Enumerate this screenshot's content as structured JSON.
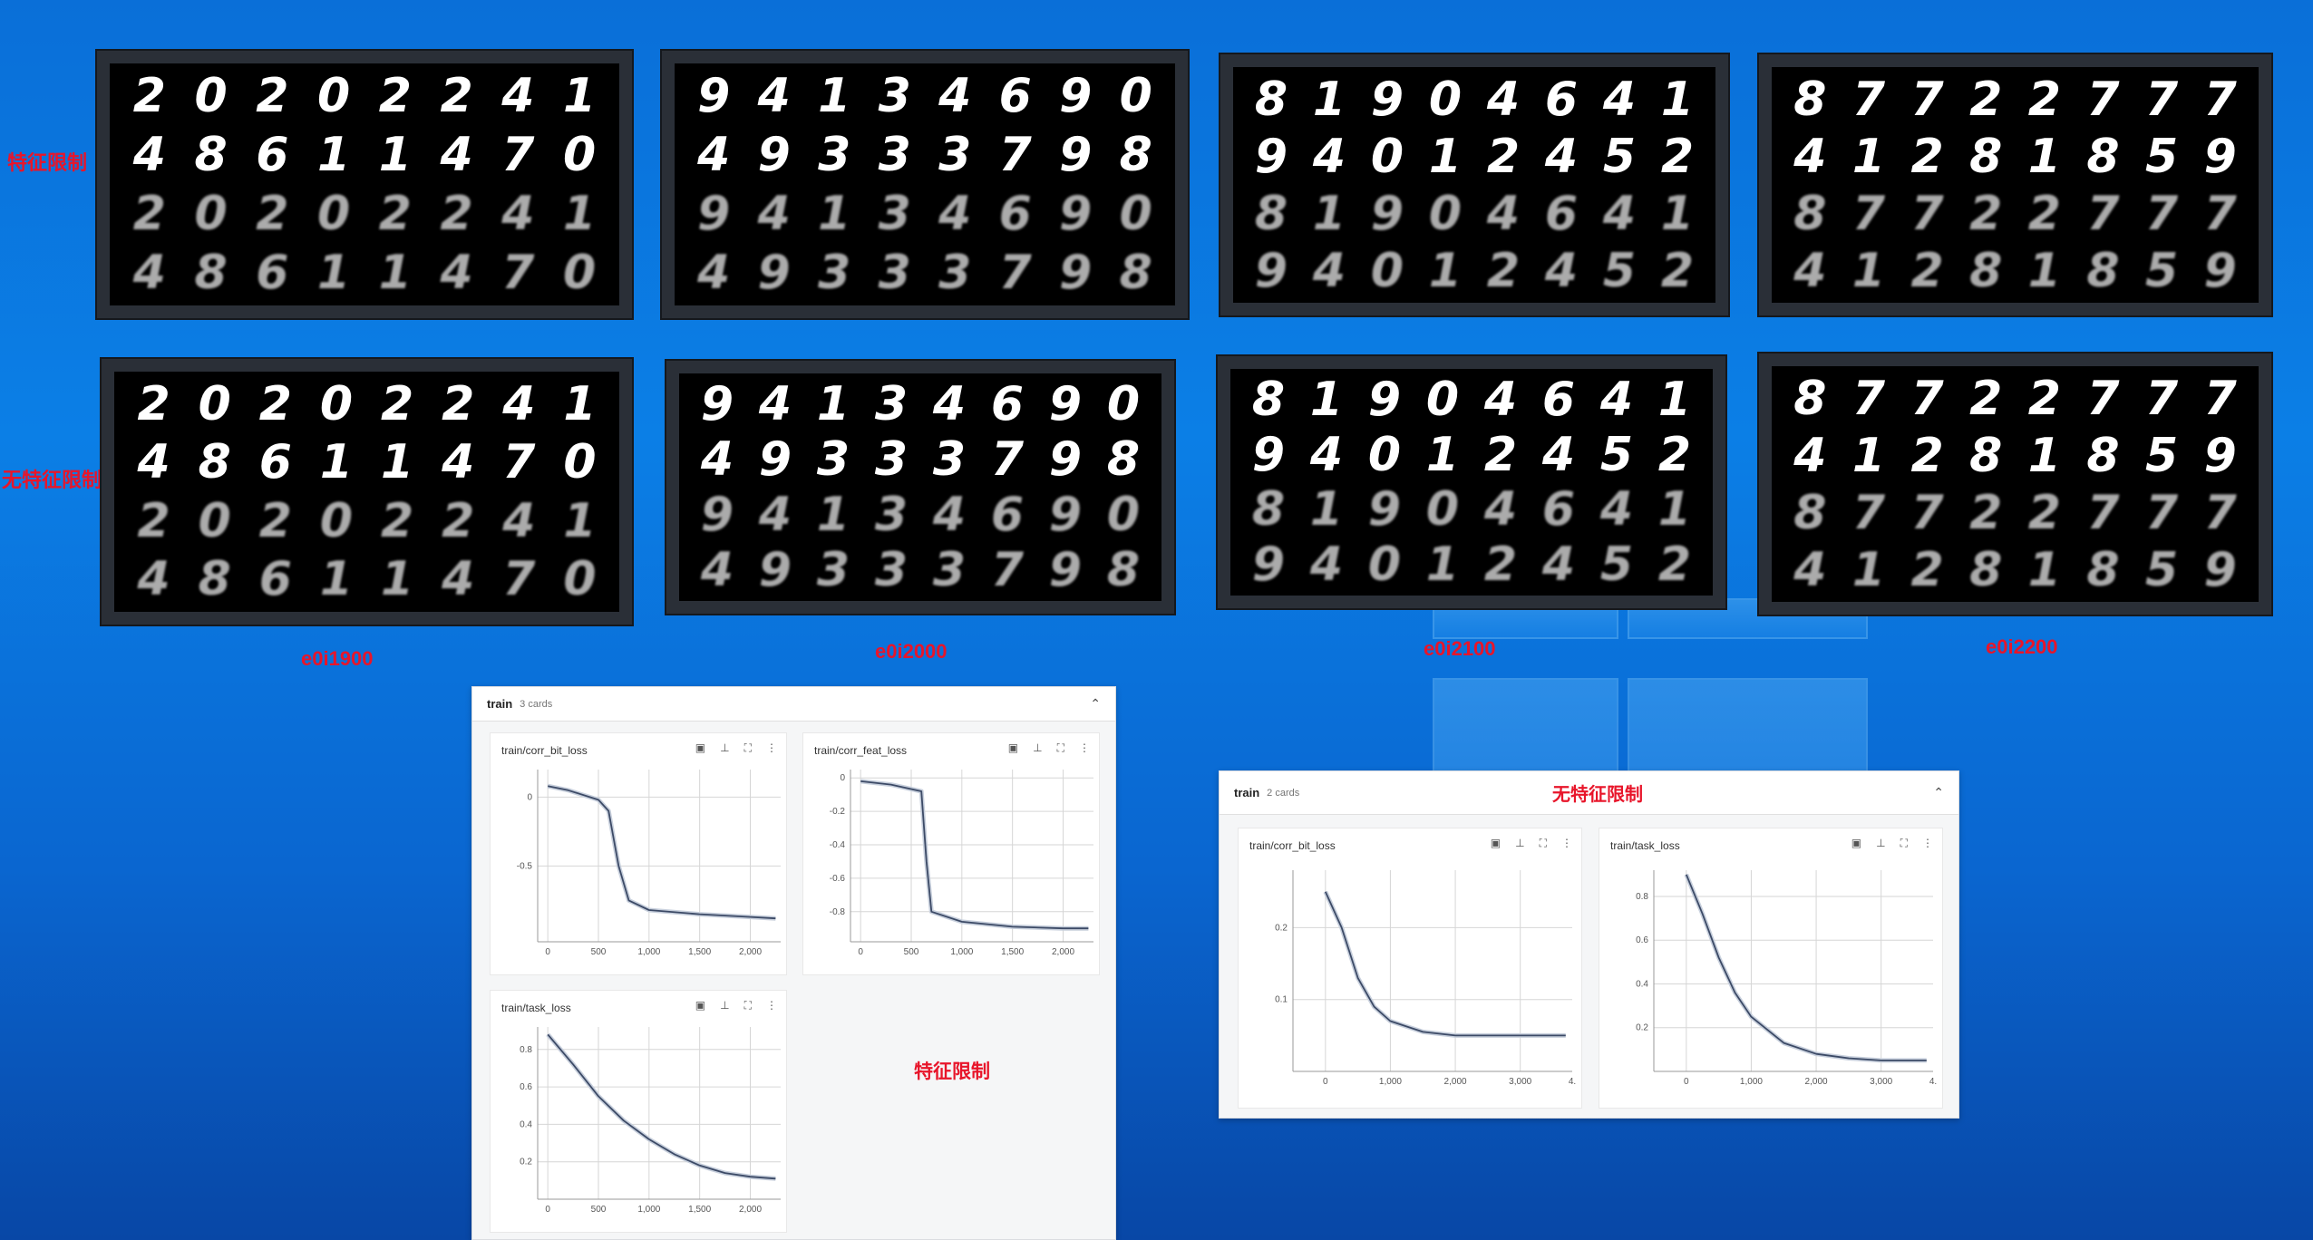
{
  "row_labels": {
    "top": "特征限制",
    "bottom": "无特征限制"
  },
  "columns": [
    {
      "label": "e0i1900",
      "digits": [
        [
          "2",
          "0",
          "2",
          "0",
          "2",
          "2",
          "4",
          "1"
        ],
        [
          "4",
          "8",
          "6",
          "1",
          "1",
          "4",
          "7",
          "0"
        ],
        [
          "2",
          "0",
          "2",
          "0",
          "2",
          "2",
          "4",
          "1"
        ],
        [
          "4",
          "8",
          "6",
          "1",
          "1",
          "4",
          "7",
          "0"
        ]
      ]
    },
    {
      "label": "e0i2000",
      "digits": [
        [
          "9",
          "4",
          "1",
          "3",
          "4",
          "6",
          "9",
          "0"
        ],
        [
          "4",
          "9",
          "3",
          "3",
          "3",
          "7",
          "9",
          "8"
        ],
        [
          "9",
          "4",
          "1",
          "3",
          "4",
          "6",
          "9",
          "0"
        ],
        [
          "4",
          "9",
          "3",
          "3",
          "3",
          "7",
          "9",
          "8"
        ]
      ]
    },
    {
      "label": "e0i2100",
      "digits": [
        [
          "8",
          "1",
          "9",
          "0",
          "4",
          "6",
          "4",
          "1"
        ],
        [
          "9",
          "4",
          "0",
          "1",
          "2",
          "4",
          "5",
          "2"
        ],
        [
          "8",
          "1",
          "9",
          "0",
          "4",
          "6",
          "4",
          "1"
        ],
        [
          "9",
          "4",
          "0",
          "1",
          "2",
          "4",
          "5",
          "2"
        ]
      ]
    },
    {
      "label": "e0i2200",
      "digits": [
        [
          "8",
          "7",
          "7",
          "2",
          "2",
          "7",
          "7",
          "7"
        ],
        [
          "4",
          "1",
          "2",
          "8",
          "1",
          "8",
          "5",
          "9"
        ],
        [
          "8",
          "7",
          "7",
          "2",
          "2",
          "7",
          "7",
          "7"
        ],
        [
          "4",
          "1",
          "2",
          "8",
          "1",
          "8",
          "5",
          "9"
        ]
      ]
    }
  ],
  "panel_left": {
    "title": "train",
    "count": "3 cards",
    "chevron": "⌃",
    "note": "特征限制",
    "cards": [
      {
        "title": "train/corr_bit_loss",
        "yticks": [
          "0",
          "-0.5"
        ],
        "xticks": [
          "0",
          "500",
          "1,000",
          "1,500",
          "2,000"
        ]
      },
      {
        "title": "train/corr_feat_loss",
        "yticks": [
          "0",
          "-0.2",
          "-0.4",
          "-0.6",
          "-0.8"
        ],
        "xticks": [
          "0",
          "500",
          "1,000",
          "1,500",
          "2,000"
        ]
      },
      {
        "title": "train/task_loss",
        "yticks": [
          "0.8",
          "0.6",
          "0.4",
          "0.2"
        ],
        "xticks": [
          "0",
          "500",
          "1,000",
          "1,500",
          "2,000"
        ]
      }
    ]
  },
  "panel_right": {
    "title": "train",
    "count": "2 cards",
    "chevron": "⌃",
    "note": "无特征限制",
    "cards": [
      {
        "title": "train/corr_bit_loss",
        "yticks": [
          "0.2",
          "0.1"
        ],
        "xticks": [
          "0",
          "1,000",
          "2,000",
          "3,000",
          "4."
        ]
      },
      {
        "title": "train/task_loss",
        "yticks": [
          "0.8",
          "0.6",
          "0.4",
          "0.2"
        ],
        "xticks": [
          "0",
          "1,000",
          "2,000",
          "3,000",
          "4."
        ]
      }
    ]
  },
  "card_icons": {
    "fit": "▣",
    "pin": "⊥",
    "expand": "⛶",
    "more": "⋮"
  },
  "colors": {
    "label_red": "#e8152a",
    "curve": "#3c4a66",
    "grid": "#d6d6d6"
  },
  "chart_data": [
    {
      "type": "line",
      "title": "train/corr_bit_loss",
      "series": [
        {
          "values": [
            [
              0,
              0.08
            ],
            [
              200,
              0.05
            ],
            [
              500,
              -0.02
            ],
            [
              600,
              -0.1
            ],
            [
              700,
              -0.5
            ],
            [
              800,
              -0.75
            ],
            [
              1000,
              -0.82
            ],
            [
              1500,
              -0.85
            ],
            [
              2000,
              -0.87
            ],
            [
              2250,
              -0.88
            ]
          ]
        }
      ],
      "yticks": [
        "0",
        "-0.5"
      ]
    },
    {
      "type": "line",
      "title": "train/corr_feat_loss",
      "series": [
        {
          "values": [
            [
              0,
              -0.02
            ],
            [
              300,
              -0.04
            ],
            [
              600,
              -0.08
            ],
            [
              650,
              -0.5
            ],
            [
              700,
              -0.8
            ],
            [
              1000,
              -0.86
            ],
            [
              1500,
              -0.89
            ],
            [
              2000,
              -0.9
            ],
            [
              2250,
              -0.9
            ]
          ]
        }
      ],
      "yticks": [
        "0",
        "-0.2",
        "-0.4",
        "-0.6",
        "-0.8"
      ]
    },
    {
      "type": "line",
      "title": "train/task_loss",
      "series": [
        {
          "values": [
            [
              0,
              0.88
            ],
            [
              250,
              0.72
            ],
            [
              500,
              0.55
            ],
            [
              750,
              0.42
            ],
            [
              1000,
              0.32
            ],
            [
              1250,
              0.24
            ],
            [
              1500,
              0.18
            ],
            [
              1750,
              0.14
            ],
            [
              2000,
              0.12
            ],
            [
              2250,
              0.11
            ]
          ]
        }
      ],
      "yticks": [
        "0.8",
        "0.6",
        "0.4",
        "0.2"
      ]
    },
    {
      "type": "line",
      "title": "train/corr_bit_loss",
      "series": [
        {
          "values": [
            [
              0,
              0.25
            ],
            [
              250,
              0.2
            ],
            [
              500,
              0.13
            ],
            [
              750,
              0.09
            ],
            [
              1000,
              0.07
            ],
            [
              1500,
              0.055
            ],
            [
              2000,
              0.05
            ],
            [
              3000,
              0.05
            ],
            [
              3700,
              0.05
            ]
          ]
        }
      ],
      "yticks": [
        "0.2",
        "0.1"
      ]
    },
    {
      "type": "line",
      "title": "train/task_loss",
      "series": [
        {
          "values": [
            [
              0,
              0.9
            ],
            [
              250,
              0.72
            ],
            [
              500,
              0.52
            ],
            [
              750,
              0.36
            ],
            [
              1000,
              0.25
            ],
            [
              1500,
              0.13
            ],
            [
              2000,
              0.08
            ],
            [
              2500,
              0.06
            ],
            [
              3000,
              0.05
            ],
            [
              3700,
              0.05
            ]
          ]
        }
      ],
      "yticks": [
        "0.8",
        "0.6",
        "0.4",
        "0.2"
      ]
    }
  ]
}
